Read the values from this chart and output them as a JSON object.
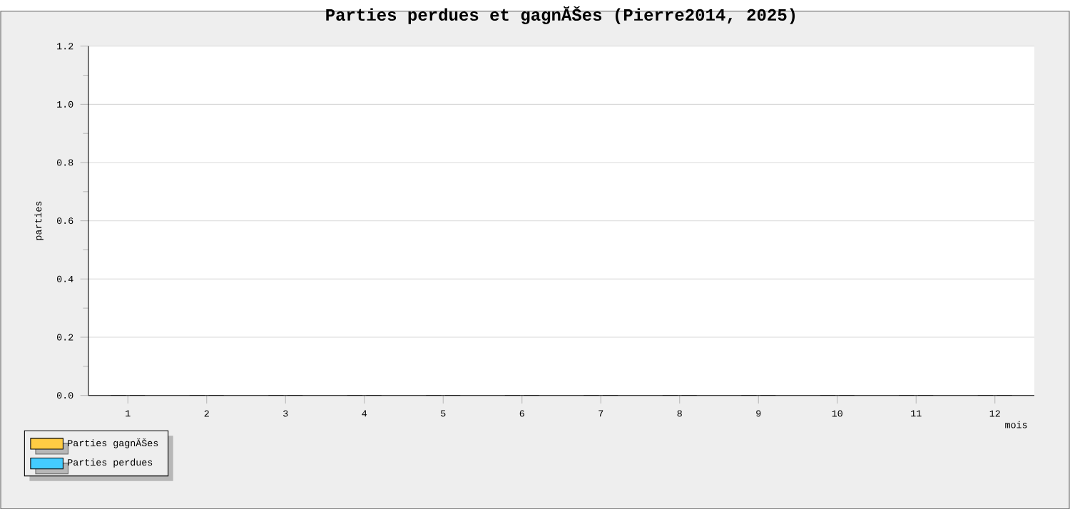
{
  "chart_data": {
    "type": "bar",
    "title": "Parties perdues et gagnĂŠes (Pierre2014, 2025)",
    "xlabel": "mois",
    "ylabel": "parties",
    "categories": [
      "1",
      "2",
      "3",
      "4",
      "5",
      "6",
      "7",
      "8",
      "9",
      "10",
      "11",
      "12"
    ],
    "series": [
      {
        "name": "Parties gagnĂŠes",
        "color": "#ffcc44",
        "values": [
          0,
          0,
          0,
          0,
          0,
          0,
          0,
          0,
          0,
          0,
          0,
          0
        ]
      },
      {
        "name": "Parties perdues",
        "color": "#44ccff",
        "values": [
          0,
          0,
          0,
          0,
          0,
          0,
          0,
          0,
          0,
          0,
          0,
          0
        ]
      }
    ],
    "ylim": [
      0,
      1.2
    ],
    "yticks": [
      {
        "value": 0,
        "label": "0.0"
      },
      {
        "value": 0.2,
        "label": "0.2"
      },
      {
        "value": 0.4,
        "label": "0.4"
      },
      {
        "value": 0.6,
        "label": "0.6"
      },
      {
        "value": 0.8,
        "label": "0.8"
      },
      {
        "value": 1.0,
        "label": "1.0"
      },
      {
        "value": 1.2,
        "label": "1.2"
      }
    ],
    "grid": "y",
    "legend": "bottom left"
  }
}
